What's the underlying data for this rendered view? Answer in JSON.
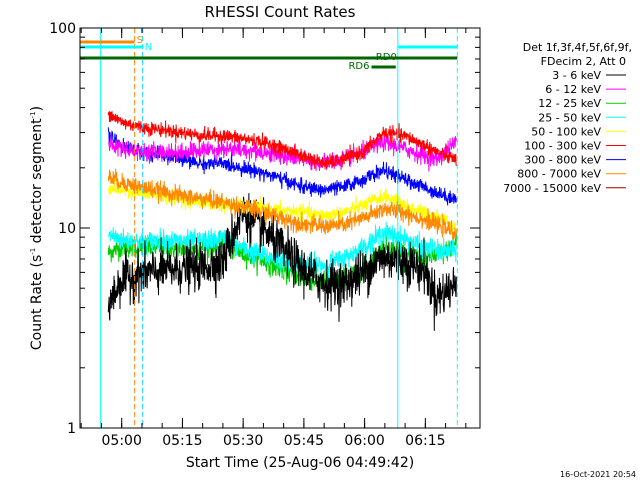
{
  "chart_data": {
    "type": "line",
    "title": "RHESSI Count Rates",
    "xlabel": "Start Time (25-Aug-06 04:49:42)",
    "ylabel_main": "Count Rate (s",
    "ylabel_sup1": "-1",
    "ylabel_mid": " detector segment",
    "ylabel_sup2": "-1",
    "ylabel_end": ")",
    "yscale": "log",
    "ylim": [
      1,
      100
    ],
    "xlim": [
      "04:49:42",
      "06:28:30"
    ],
    "x_ticks": [
      "05:00",
      "05:15",
      "05:30",
      "05:45",
      "06:00",
      "06:15"
    ],
    "y_ticks": [
      "1",
      "10",
      "100"
    ],
    "legend_header": [
      "Det 1f,3f,4f,5f,6f,9f,",
      "FDecim 2, Att 0"
    ],
    "legend_position": "right",
    "timestamp": "16-Oct-2021 20:54",
    "series": [
      {
        "name": "3 - 6 keV",
        "color": "#000000",
        "x": [
          7,
          10,
          15,
          20,
          25,
          30,
          35,
          40,
          45,
          50,
          55,
          60,
          65,
          70,
          75,
          80,
          85,
          88,
          93
        ],
        "y": [
          4.0,
          5.5,
          5.9,
          6.1,
          6.3,
          6.4,
          6.7,
          12.0,
          10.0,
          7.8,
          6.2,
          5.3,
          5.2,
          6.0,
          7.2,
          6.8,
          6.2,
          4.5,
          5.2
        ],
        "noise": 0.13
      },
      {
        "name": "6 - 12 keV",
        "color": "#ff00ff",
        "x": [
          7,
          15,
          25,
          35,
          45,
          55,
          60,
          65,
          70,
          75,
          80,
          85,
          88,
          93
        ],
        "y": [
          26,
          24,
          24,
          25,
          24,
          22,
          21,
          22,
          24,
          27,
          25,
          23,
          22,
          27
        ],
        "noise": 0.05
      },
      {
        "name": "12 - 25 keV",
        "color": "#00cc00",
        "x": [
          7,
          10,
          15,
          20,
          25,
          30,
          35,
          40,
          45,
          50,
          55,
          60,
          65,
          70,
          75,
          80,
          85,
          90,
          93
        ],
        "y": [
          7.5,
          8.0,
          8.0,
          8.0,
          7.8,
          7.9,
          8.3,
          7.5,
          6.9,
          6.2,
          5.6,
          5.4,
          5.6,
          6.3,
          8.0,
          7.6,
          7.0,
          7.5,
          8.5
        ],
        "noise": 0.06
      },
      {
        "name": "25 - 50 keV",
        "color": "#00ffff",
        "x": [
          7,
          10,
          15,
          20,
          25,
          30,
          35,
          40,
          45,
          50,
          55,
          60,
          65,
          70,
          75,
          80,
          85,
          90,
          93
        ],
        "y": [
          9.3,
          8.8,
          8.5,
          8.7,
          8.6,
          8.6,
          8.8,
          8.0,
          7.3,
          6.8,
          6.6,
          6.5,
          7.0,
          8.0,
          9.5,
          8.8,
          8.0,
          7.6,
          7.8
        ],
        "noise": 0.06
      },
      {
        "name": "50 - 100 keV",
        "color": "#ffff00",
        "x": [
          7,
          15,
          25,
          35,
          45,
          55,
          60,
          65,
          70,
          75,
          80,
          85,
          90,
          93
        ],
        "y": [
          16,
          15,
          14,
          13,
          12.5,
          12,
          11.5,
          12,
          13,
          14.5,
          13,
          12,
          11,
          10
        ],
        "noise": 0.04
      },
      {
        "name": "100 - 300 keV",
        "color": "#ff0000",
        "x": [
          7,
          10,
          15,
          20,
          25,
          30,
          35,
          40,
          45,
          50,
          55,
          60,
          65,
          70,
          75,
          80,
          85,
          90,
          93
        ],
        "y": [
          38,
          34,
          32,
          31,
          30,
          29,
          29,
          28,
          27,
          25,
          23,
          21,
          22,
          24,
          30,
          29,
          26,
          23,
          22
        ],
        "noise": 0.04
      },
      {
        "name": "300 - 800 keV",
        "color": "#0000ff",
        "x": [
          7,
          10,
          15,
          20,
          25,
          30,
          35,
          40,
          45,
          50,
          55,
          60,
          65,
          70,
          75,
          80,
          85,
          90,
          93
        ],
        "y": [
          29,
          26,
          24,
          23,
          22,
          21,
          21,
          20,
          19,
          17.5,
          16,
          15.5,
          16,
          17.5,
          19.5,
          17.5,
          16,
          14.5,
          14
        ],
        "noise": 0.04
      },
      {
        "name": "800 - 7000 keV",
        "color": "#ff8800",
        "x": [
          7,
          10,
          15,
          20,
          25,
          30,
          35,
          40,
          45,
          50,
          55,
          60,
          65,
          70,
          75,
          80,
          85,
          90,
          93
        ],
        "y": [
          18,
          17,
          16,
          15.3,
          14.5,
          14,
          13.5,
          12.8,
          12,
          11.2,
          10.5,
          10.2,
          10.4,
          11.2,
          12.5,
          12,
          11,
          10,
          9.5
        ],
        "noise": 0.05
      },
      {
        "name": "7000 - 15000 keV",
        "color": "#990000",
        "x": [],
        "y": []
      }
    ],
    "vertical_markers": [
      {
        "x": 5.1,
        "color": "#00ffff",
        "style": "solid"
      },
      {
        "x": 13.5,
        "color": "#ff8800",
        "style": "dashed"
      },
      {
        "x": 15.5,
        "color": "#00ccff",
        "style": "dashed"
      },
      {
        "x": 78.5,
        "color": "#00ffff",
        "style": "solid"
      },
      {
        "x": 93.2,
        "color": "#00ffff",
        "style": "dashed"
      }
    ],
    "state_bars": [
      {
        "label": "S",
        "color": "#ff8800",
        "x1": 0,
        "x2": 13.5,
        "y": 42,
        "text_y": 43
      },
      {
        "label": "N",
        "color": "#00ffff",
        "x1": 0,
        "x2": 15.5,
        "y": 47,
        "text_y": 50
      },
      {
        "label": "",
        "color": "#00ffff",
        "x1": 78.5,
        "x2": 93.2,
        "y": 47,
        "text_y": 0
      },
      {
        "label": "RD0",
        "color": "#006600",
        "x1": 0,
        "x2": 93.2,
        "y": 58,
        "text_y": 60
      },
      {
        "label": "RD6",
        "color": "#006600",
        "x1": 72,
        "x2": 78,
        "y": 67,
        "text_y": 69
      }
    ]
  }
}
